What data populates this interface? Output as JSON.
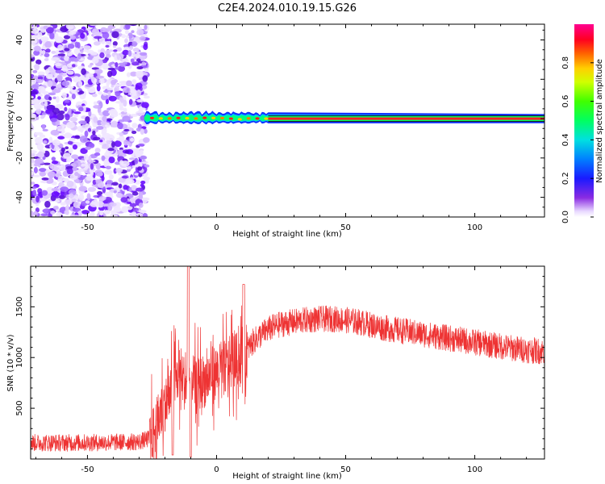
{
  "title": "C2E4.2024.010.19.15.G26",
  "colors": {
    "noise": "#6a0dff",
    "snr_line": "#ee3333",
    "signal_band_core": "#ff2020",
    "signal_band_edge": "#00c8ff"
  },
  "chart_data": [
    {
      "id": "spectrogram",
      "type": "heatmap",
      "title": "C2E4.2024.010.19.15.G26",
      "xlabel": "Height of straight line (km)",
      "ylabel": "Frequency (Hz)",
      "xlim": [
        -72,
        127
      ],
      "ylim": [
        -50,
        48
      ],
      "x_ticks": [
        -50,
        0,
        50,
        100
      ],
      "y_ticks": [
        -40,
        -20,
        0,
        20,
        40
      ],
      "noise_region_x": [
        -72,
        -27
      ],
      "signal_line_frequency_hz": 0,
      "signal_start_x": -28,
      "colorbar": {
        "label": "Normalized spectral amplitude",
        "range": [
          0.0,
          1.0
        ],
        "ticks": [
          "0.0",
          "0.2",
          "0.4",
          "0.6",
          "0.8"
        ],
        "colormap": "gist_rainbow_r"
      }
    },
    {
      "id": "snr",
      "type": "line",
      "xlabel": "Height of straight line (km)",
      "ylabel": "SNR (10 * v/v)",
      "xlim": [
        -72,
        127
      ],
      "ylim": [
        0,
        1900
      ],
      "x_ticks": [
        -50,
        0,
        50,
        100
      ],
      "y_ticks": [
        500,
        1000,
        1500
      ],
      "series": [
        {
          "x": [
            -72,
            -60,
            -50,
            -40,
            -30,
            -26,
            -24,
            -22,
            -20,
            -18,
            -16,
            -14,
            -12,
            -10,
            -8,
            -6,
            -4,
            -2,
            0,
            2,
            4,
            6,
            8,
            10,
            12,
            14,
            16,
            18,
            20,
            22,
            25,
            30,
            35,
            40,
            45,
            50,
            55,
            60,
            65,
            70,
            75,
            80,
            85,
            90,
            95,
            100,
            105,
            110,
            115,
            120,
            127
          ],
          "values": [
            160,
            160,
            160,
            165,
            170,
            200,
            280,
            420,
            540,
            620,
            760,
            860,
            720,
            840,
            700,
            760,
            780,
            840,
            860,
            880,
            920,
            960,
            980,
            1000,
            1080,
            1150,
            1200,
            1240,
            1280,
            1300,
            1330,
            1350,
            1370,
            1380,
            1380,
            1370,
            1350,
            1320,
            1290,
            1270,
            1250,
            1230,
            1210,
            1190,
            1170,
            1150,
            1130,
            1110,
            1090,
            1075,
            1060
          ]
        }
      ]
    }
  ]
}
